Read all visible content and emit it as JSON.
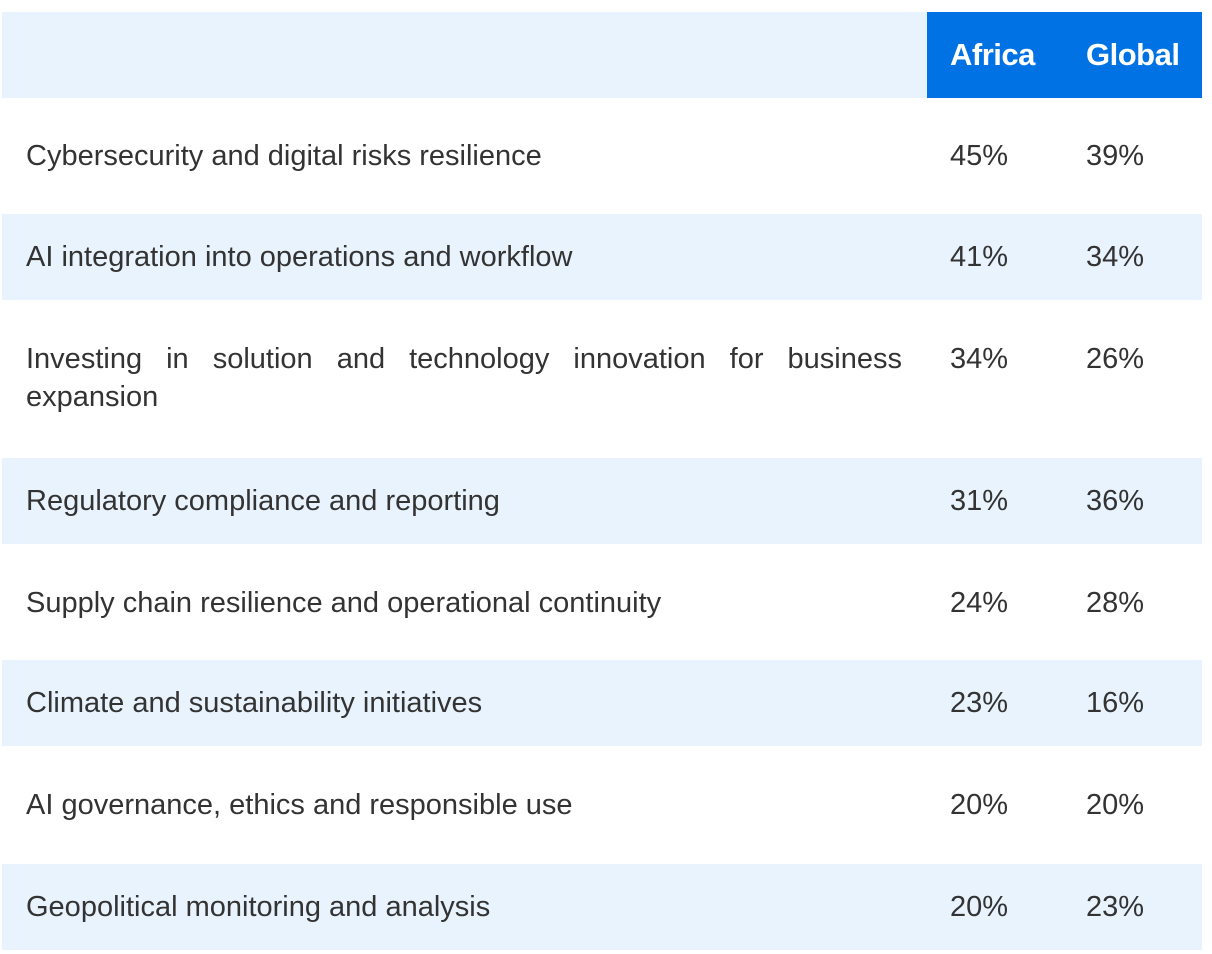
{
  "table": {
    "columns": [
      "",
      "Africa",
      "Global"
    ],
    "rows": [
      {
        "label": "Cybersecurity and digital risks resilience",
        "africa": "45%",
        "global": "39%"
      },
      {
        "label": "AI integration into operations and workflow",
        "africa": "41%",
        "global": "34%"
      },
      {
        "label": "Investing in solution and technology innovation for business expansion",
        "africa": "34%",
        "global": "26%"
      },
      {
        "label": "Regulatory compliance and reporting",
        "africa": "31%",
        "global": "36%"
      },
      {
        "label": "Supply chain resilience and operational continuity",
        "africa": "24%",
        "global": "28%"
      },
      {
        "label": "Climate and sustainability initiatives",
        "africa": "23%",
        "global": "16%"
      },
      {
        "label": "AI governance, ethics and responsible use",
        "africa": "20%",
        "global": "20%"
      },
      {
        "label": "Geopolitical monitoring and analysis",
        "africa": "20%",
        "global": "23%"
      }
    ]
  },
  "chart_data": {
    "type": "table",
    "columns": [
      "",
      "Africa",
      "Global"
    ],
    "categories": [
      "Cybersecurity and digital risks resilience",
      "AI integration into operations and workflow",
      "Investing in solution and technology innovation for business expansion",
      "Regulatory compliance and reporting",
      "Supply chain resilience and operational continuity",
      "Climate and sustainability initiatives",
      "AI governance, ethics and responsible use",
      "Geopolitical monitoring and analysis"
    ],
    "series": [
      {
        "name": "Africa",
        "values": [
          45,
          41,
          34,
          31,
          24,
          23,
          20,
          20
        ]
      },
      {
        "name": "Global",
        "values": [
          39,
          34,
          26,
          36,
          28,
          16,
          20,
          23
        ]
      }
    ]
  },
  "colors": {
    "header_accent": "#0072e3",
    "band": "#e8f3fd",
    "text": "#333333"
  }
}
